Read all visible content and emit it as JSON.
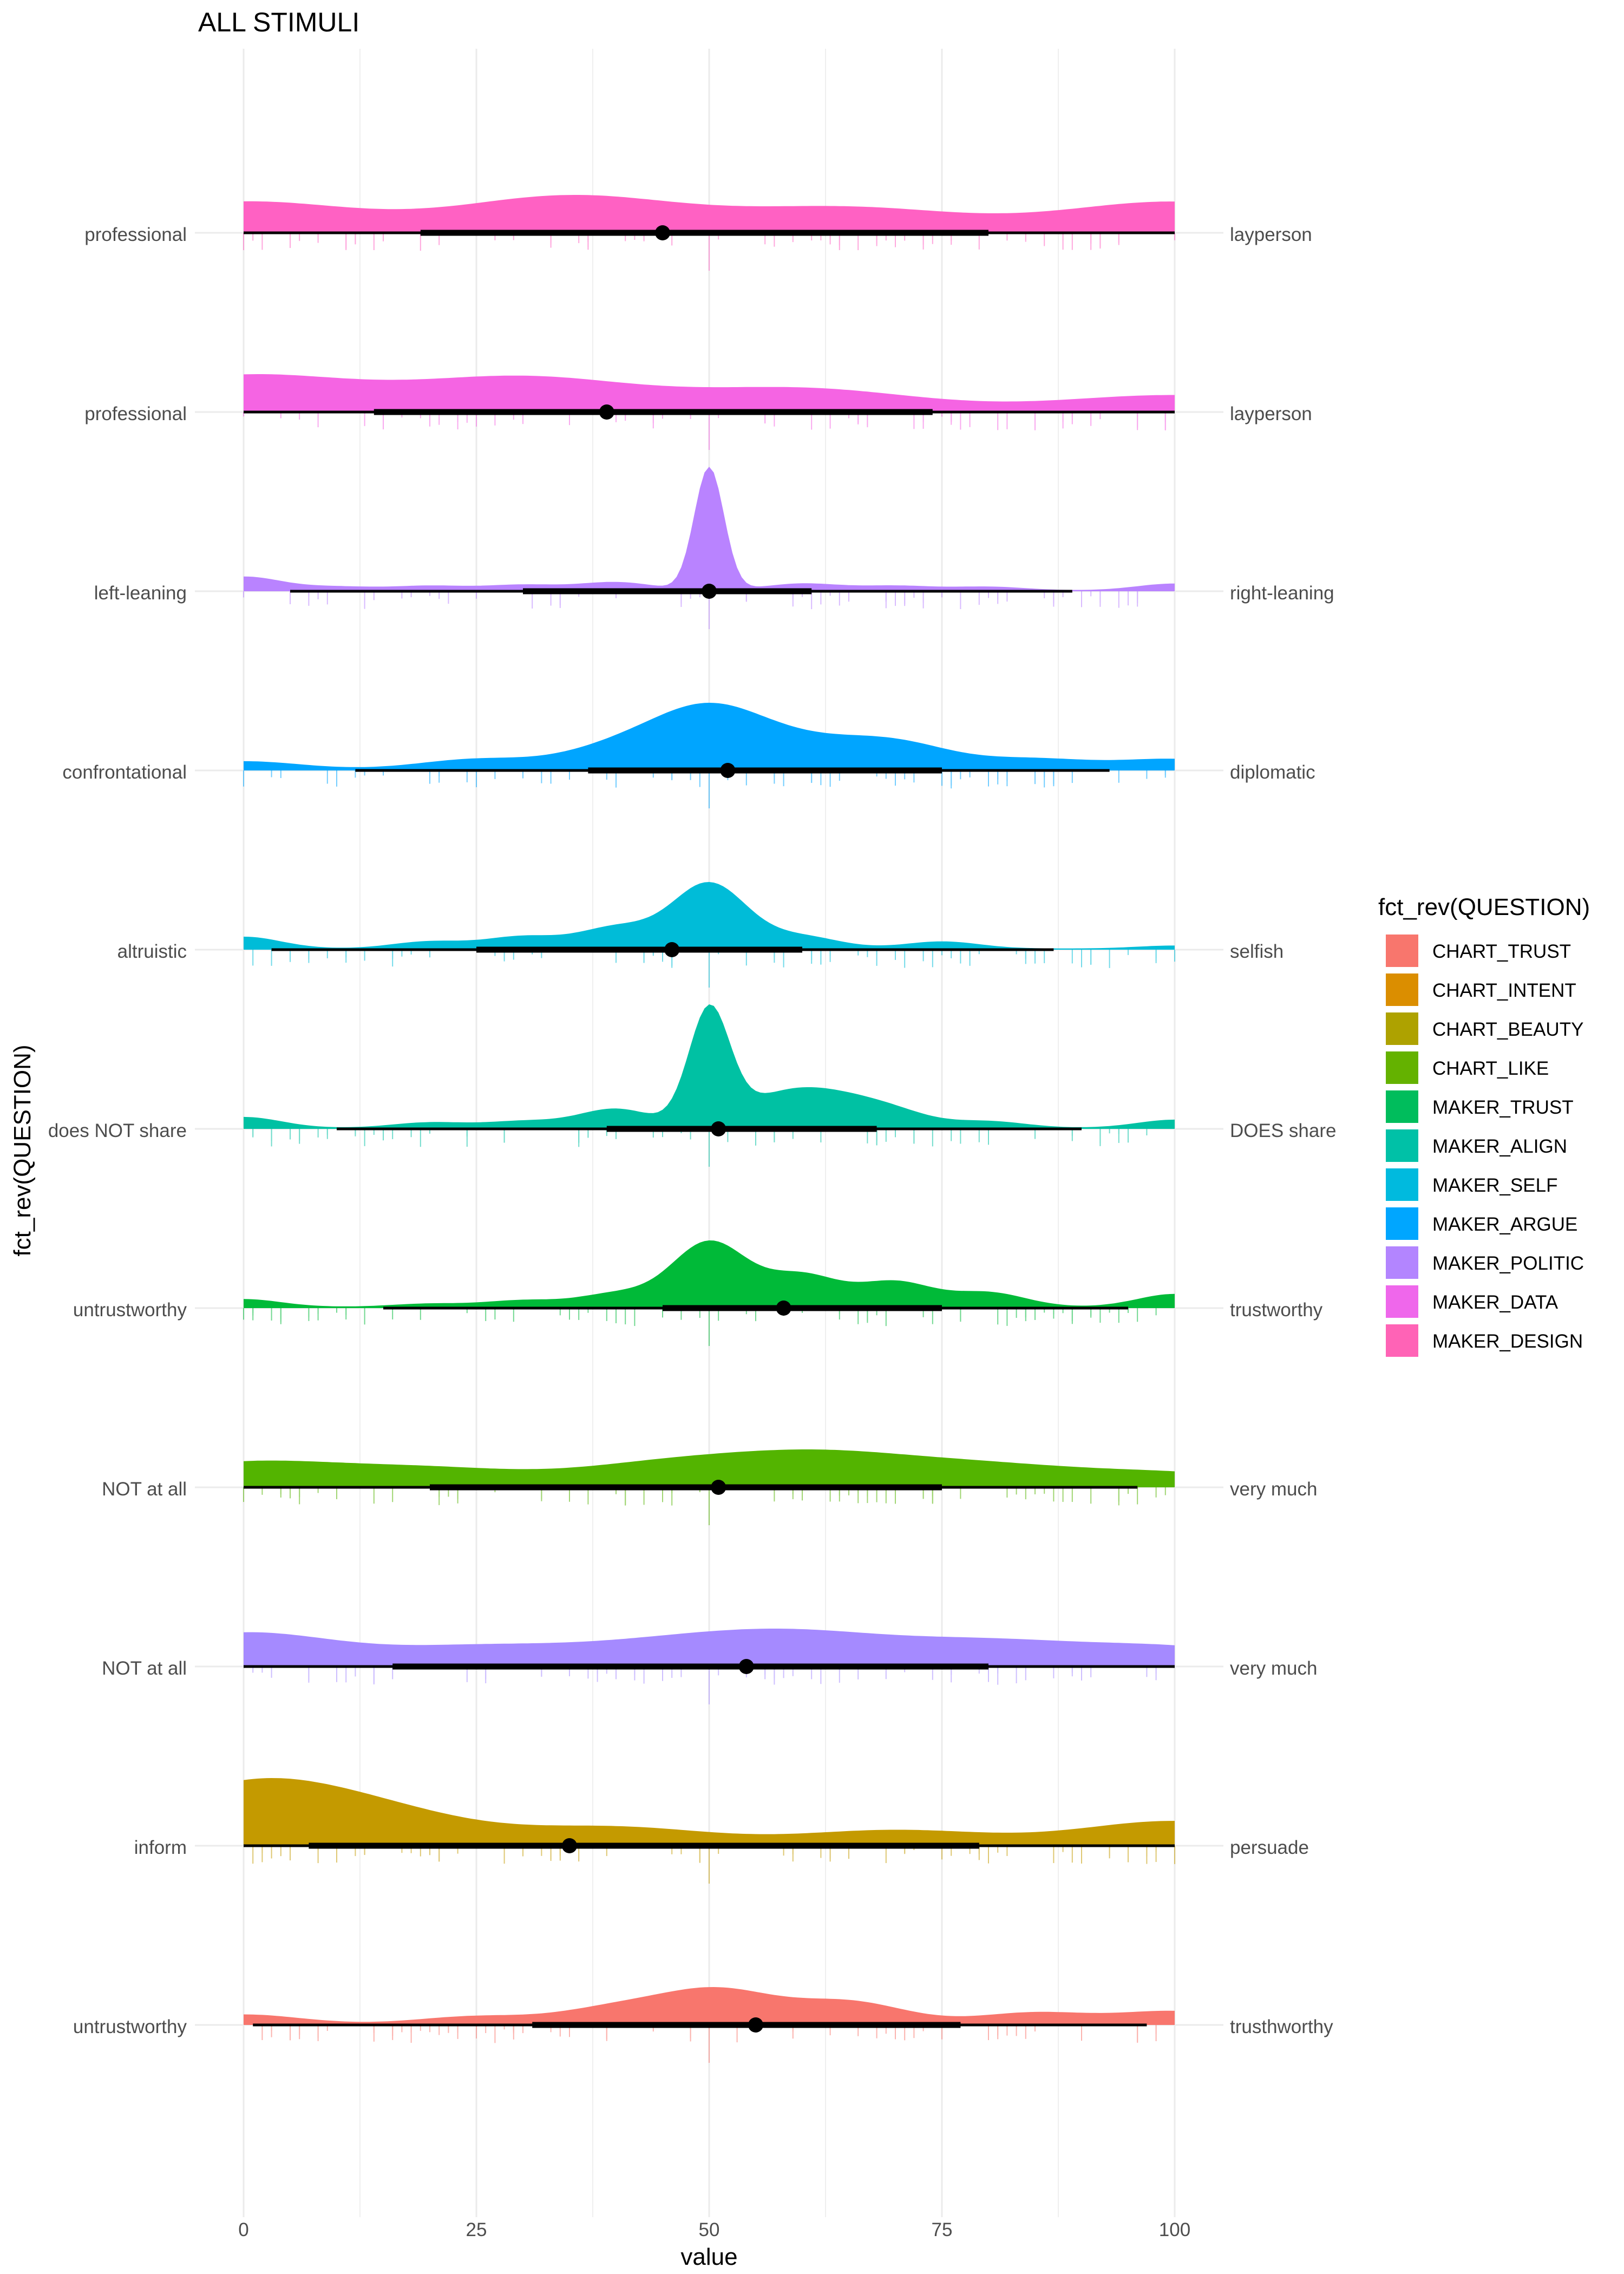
{
  "chart_data": {
    "type": "density",
    "title": "ALL STIMULI",
    "xlabel": "value",
    "ylabel": "fct_rev(QUESTION)",
    "xlim": [
      0,
      100
    ],
    "x_ticks": [
      0,
      25,
      50,
      75,
      100
    ],
    "grid": true,
    "legend": {
      "title": "fct_rev(QUESTION)",
      "position": "right"
    },
    "series": [
      {
        "name": "MAKER_DESIGN",
        "color": "#FF61C3",
        "left_label": "professional",
        "right_label": "layperson",
        "median": 45,
        "interval_66": [
          19,
          80
        ],
        "interval_95": [
          0,
          100
        ],
        "density_peaks": [
          [
            0,
            0.32
          ],
          [
            35,
            0.38
          ],
          [
            65,
            0.25
          ],
          [
            100,
            0.32
          ]
        ],
        "density_sd": 12
      },
      {
        "name": "MAKER_DATA",
        "color": "#F564E3",
        "left_label": "professional",
        "right_label": "layperson",
        "median": 39,
        "interval_66": [
          14,
          74
        ],
        "interval_95": [
          0,
          100
        ],
        "density_peaks": [
          [
            0,
            0.45
          ],
          [
            30,
            0.42
          ],
          [
            60,
            0.28
          ],
          [
            100,
            0.2
          ]
        ],
        "density_sd": 12
      },
      {
        "name": "MAKER_POLITIC",
        "color": "#B983FF",
        "left_label": "left-leaning",
        "right_label": "right-leaning",
        "median": 50,
        "interval_66": [
          30,
          61
        ],
        "interval_95": [
          5,
          89
        ],
        "density_peaks": [
          [
            0,
            0.3
          ],
          [
            10,
            0.08
          ],
          [
            20,
            0.1
          ],
          [
            30,
            0.12
          ],
          [
            40,
            0.18
          ],
          [
            50,
            2.7
          ],
          [
            60,
            0.15
          ],
          [
            70,
            0.1
          ],
          [
            80,
            0.08
          ],
          [
            100,
            0.15
          ]
        ],
        "density_sd": 1.6
      },
      {
        "name": "MAKER_ARGUE",
        "color": "#00A5FF",
        "left_label": "confrontational",
        "right_label": "diplomatic",
        "median": 52,
        "interval_66": [
          37,
          75
        ],
        "interval_95": [
          12,
          93
        ],
        "density_peaks": [
          [
            0,
            0.12
          ],
          [
            25,
            0.15
          ],
          [
            40,
            0.3
          ],
          [
            50,
            0.85
          ],
          [
            60,
            0.3
          ],
          [
            70,
            0.38
          ],
          [
            85,
            0.15
          ],
          [
            100,
            0.15
          ]
        ],
        "density_sd": 6
      },
      {
        "name": "MAKER_SELF",
        "color": "#00BCD8",
        "left_label": "altruistic",
        "right_label": "selfish",
        "median": 46,
        "interval_66": [
          25,
          60
        ],
        "interval_95": [
          3,
          87
        ],
        "density_peaks": [
          [
            0,
            0.2
          ],
          [
            20,
            0.12
          ],
          [
            30,
            0.2
          ],
          [
            40,
            0.35
          ],
          [
            50,
            1.1
          ],
          [
            60,
            0.2
          ],
          [
            75,
            0.12
          ],
          [
            100,
            0.05
          ]
        ],
        "density_sd": 4
      },
      {
        "name": "MAKER_ALIGN",
        "color": "#00C1A3",
        "left_label": "does NOT share",
        "right_label": "DOES share",
        "median": 51,
        "interval_66": [
          39,
          68
        ],
        "interval_95": [
          10,
          90
        ],
        "density_peaks": [
          [
            0,
            0.2
          ],
          [
            20,
            0.1
          ],
          [
            30,
            0.12
          ],
          [
            40,
            0.35
          ],
          [
            50,
            2.1
          ],
          [
            55,
            0.3
          ],
          [
            60,
            0.45
          ],
          [
            65,
            0.32
          ],
          [
            70,
            0.25
          ],
          [
            80,
            0.12
          ],
          [
            100,
            0.15
          ]
        ],
        "density_sd": 2.2
      },
      {
        "name": "MAKER_TRUST",
        "color": "#00BA38",
        "left_label": "untrustworthy",
        "right_label": "trustworthy",
        "median": 58,
        "interval_66": [
          45,
          75
        ],
        "interval_95": [
          15,
          95
        ],
        "density_peaks": [
          [
            0,
            0.12
          ],
          [
            20,
            0.05
          ],
          [
            30,
            0.1
          ],
          [
            40,
            0.2
          ],
          [
            50,
            1.0
          ],
          [
            60,
            0.48
          ],
          [
            70,
            0.38
          ],
          [
            80,
            0.22
          ],
          [
            100,
            0.2
          ]
        ],
        "density_sd": 4
      },
      {
        "name": "CHART_LIKE",
        "color": "#53B400",
        "left_label": "NOT at all",
        "right_label": "very much",
        "median": 51,
        "interval_66": [
          20,
          75
        ],
        "interval_95": [
          0,
          96
        ],
        "density_peaks": [
          [
            0,
            0.28
          ],
          [
            20,
            0.2
          ],
          [
            45,
            0.25
          ],
          [
            62,
            0.35
          ],
          [
            80,
            0.22
          ],
          [
            100,
            0.15
          ]
        ],
        "density_sd": 10
      },
      {
        "name": "CHART_BEAUTY",
        "color": "#A58AFF",
        "left_label": "NOT at all",
        "right_label": "very much",
        "median": 54,
        "interval_66": [
          16,
          80
        ],
        "interval_95": [
          0,
          100
        ],
        "density_peaks": [
          [
            0,
            0.38
          ],
          [
            25,
            0.2
          ],
          [
            45,
            0.22
          ],
          [
            60,
            0.32
          ],
          [
            80,
            0.25
          ],
          [
            100,
            0.2
          ]
        ],
        "density_sd": 10
      },
      {
        "name": "CHART_INTENT",
        "color": "#C49A00",
        "left_label": "inform",
        "right_label": "persuade",
        "median": 35,
        "interval_66": [
          7,
          79
        ],
        "interval_95": [
          0,
          100
        ],
        "density_peaks": [
          [
            0,
            0.6
          ],
          [
            15,
            0.3
          ],
          [
            40,
            0.18
          ],
          [
            70,
            0.15
          ],
          [
            100,
            0.25
          ]
        ],
        "density_sd": 10
      },
      {
        "name": "CHART_TRUST",
        "color": "#F8766D",
        "left_label": "untrustworthy",
        "right_label": "trusthworthy",
        "median": 55,
        "interval_66": [
          31,
          77
        ],
        "interval_95": [
          1,
          97
        ],
        "density_peaks": [
          [
            0,
            0.15
          ],
          [
            25,
            0.12
          ],
          [
            40,
            0.25
          ],
          [
            51,
            0.52
          ],
          [
            65,
            0.35
          ],
          [
            85,
            0.18
          ],
          [
            100,
            0.2
          ]
        ],
        "density_sd": 6
      }
    ],
    "legend_entries": [
      {
        "label": "CHART_TRUST",
        "color": "#F8766D"
      },
      {
        "label": "CHART_INTENT",
        "color": "#DB8E00"
      },
      {
        "label": "CHART_BEAUTY",
        "color": "#AEA200"
      },
      {
        "label": "CHART_LIKE",
        "color": "#64B200"
      },
      {
        "label": "MAKER_TRUST",
        "color": "#00BD5C"
      },
      {
        "label": "MAKER_ALIGN",
        "color": "#00C1A7"
      },
      {
        "label": "MAKER_SELF",
        "color": "#00BADE"
      },
      {
        "label": "MAKER_ARGUE",
        "color": "#00A6FF"
      },
      {
        "label": "MAKER_POLITIC",
        "color": "#B385FF"
      },
      {
        "label": "MAKER_DATA",
        "color": "#EF67EB"
      },
      {
        "label": "MAKER_DESIGN",
        "color": "#FF63B6"
      }
    ]
  }
}
